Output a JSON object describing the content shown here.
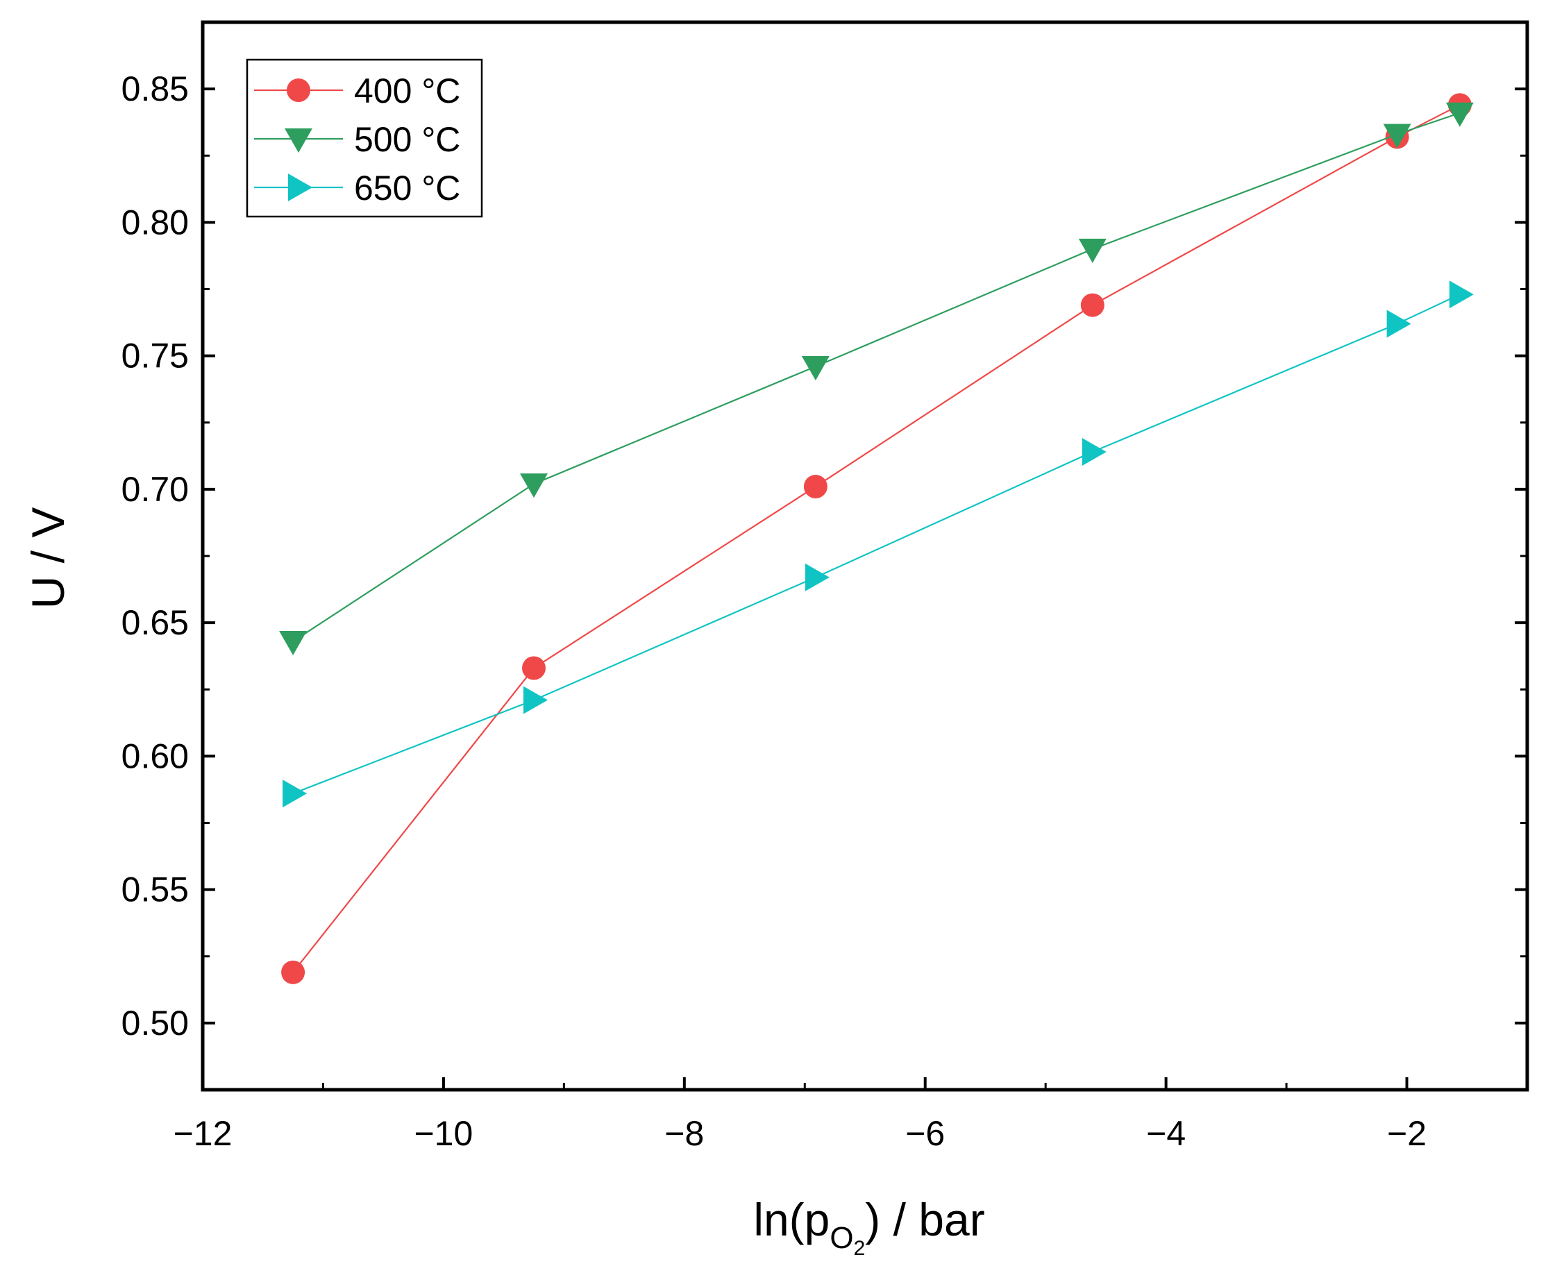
{
  "chart_data": {
    "type": "line",
    "title": "",
    "xlabel": "ln(pO2) / bar",
    "xlabel_parts": {
      "base": "ln(p",
      "sub": "O",
      "subsub": "2",
      "tail": ") / bar"
    },
    "ylabel": "U / V",
    "xlim": [
      -12,
      -1
    ],
    "ylim": [
      0.475,
      0.875
    ],
    "x_ticks": [
      -12,
      -10,
      -8,
      -6,
      -4,
      -2
    ],
    "x_tick_labels": [
      "−12",
      "−10",
      "−8",
      "−6",
      "−4",
      "−2"
    ],
    "y_ticks": [
      0.5,
      0.55,
      0.6,
      0.65,
      0.7,
      0.75,
      0.8,
      0.85
    ],
    "y_tick_labels": [
      "0.50",
      "0.55",
      "0.60",
      "0.65",
      "0.70",
      "0.75",
      "0.80",
      "0.85"
    ],
    "legend_position": "top-left",
    "series": [
      {
        "name": "400 °C",
        "color": "#f04848",
        "marker": "circle",
        "x": [
          -11.25,
          -9.25,
          -6.91,
          -4.61,
          -2.08,
          -1.56
        ],
        "y": [
          0.519,
          0.633,
          0.701,
          0.769,
          0.832,
          0.844
        ]
      },
      {
        "name": "500 °C",
        "color": "#2e9e5e",
        "marker": "triangle-down",
        "x": [
          -11.25,
          -9.25,
          -6.91,
          -4.61,
          -2.08,
          -1.56
        ],
        "y": [
          0.643,
          0.702,
          0.746,
          0.79,
          0.833,
          0.841
        ]
      },
      {
        "name": "650 °C",
        "color": "#10c4c4",
        "marker": "triangle-right",
        "x": [
          -11.25,
          -9.25,
          -6.91,
          -4.61,
          -2.08,
          -1.56
        ],
        "y": [
          0.586,
          0.621,
          0.667,
          0.714,
          0.762,
          0.773
        ]
      }
    ]
  }
}
